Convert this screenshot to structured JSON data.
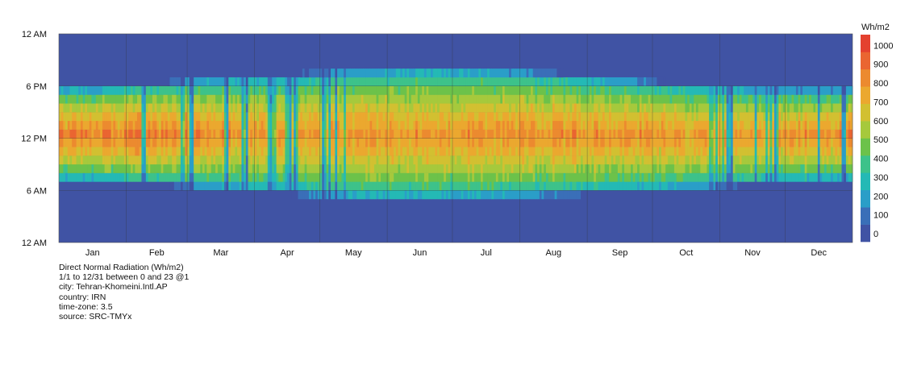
{
  "chart_data": {
    "type": "heatmap",
    "title": "Direct Normal Radiation (Wh/m2)",
    "x_tick_labels": [
      "Jan",
      "Feb",
      "Mar",
      "Apr",
      "May",
      "Jun",
      "Jul",
      "Aug",
      "Sep",
      "Oct",
      "Nov",
      "Dec"
    ],
    "y_tick_labels": [
      "12 AM",
      "6 PM",
      "12 PM",
      "6 AM",
      "12 AM"
    ],
    "x_range": [
      "1/1",
      "12/31"
    ],
    "y_range_hours": [
      0,
      24
    ],
    "colorbar": {
      "label": "Wh/m2",
      "ticks": [
        0,
        100,
        200,
        300,
        400,
        500,
        600,
        700,
        800,
        900,
        1000
      ],
      "range": [
        0,
        1100
      ],
      "colors": [
        "#4053a4",
        "#3a6fb8",
        "#2a9ec8",
        "#24b9b5",
        "#3dc28a",
        "#6cc24a",
        "#a6c93c",
        "#d2c031",
        "#eba82f",
        "#ec8a2f",
        "#ea6531",
        "#e4412f"
      ]
    },
    "series_monthly": {
      "months": [
        "Jan",
        "Feb",
        "Mar",
        "Apr",
        "May",
        "Jun",
        "Jul",
        "Aug",
        "Sep",
        "Oct",
        "Nov",
        "Dec"
      ],
      "sunrise_hour": [
        7.4,
        7.0,
        6.4,
        5.9,
        5.3,
        5.1,
        5.3,
        5.7,
        6.1,
        6.5,
        7.0,
        7.4
      ],
      "sunset_hour": [
        17.5,
        18.0,
        18.6,
        19.0,
        19.6,
        19.8,
        19.6,
        19.2,
        18.5,
        17.9,
        17.5,
        17.3
      ],
      "peak_noon_value": [
        950,
        960,
        930,
        850,
        880,
        890,
        880,
        920,
        910,
        880,
        900,
        930
      ]
    }
  },
  "legend": {
    "unit": "Wh/m2",
    "labels": [
      "1000",
      "900",
      "800",
      "700",
      "600",
      "500",
      "400",
      "300",
      "200",
      "100",
      "0"
    ]
  },
  "info": {
    "line1": "Direct Normal Radiation (Wh/m2)",
    "line2": "1/1 to 12/31 between 0 and 23 @1",
    "line3": "city: Tehran-Khomeini.Intl.AP",
    "line4": "country: IRN",
    "line5": "time-zone: 3.5",
    "line6": "source: SRC-TMYx"
  }
}
